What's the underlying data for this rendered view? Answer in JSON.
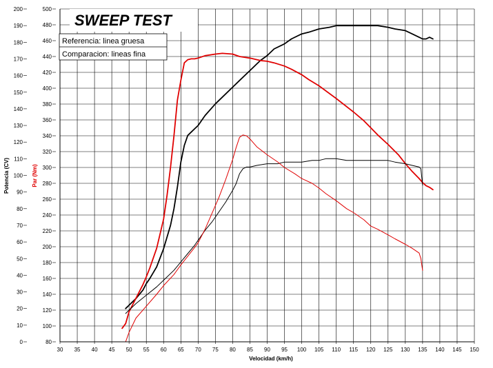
{
  "chart_data": {
    "type": "line",
    "title": "SWEEP TEST",
    "legend": [
      "Referencia: linea gruesa",
      "Comparacion: lineas fina"
    ],
    "legend_placement": "top-left",
    "xlabel": "Velocidad (km/h)",
    "ylabel_left": "Potencia (CV)",
    "ylabel_right": "Par (Nm)",
    "xlim": [
      30,
      150
    ],
    "ylim_left": [
      0,
      200
    ],
    "ylim_right": [
      80,
      500
    ],
    "x_ticks": [
      "30",
      "35",
      "40",
      "45",
      "50",
      "55",
      "60",
      "65",
      "70",
      "75",
      "80",
      "85",
      "90",
      "95",
      "100",
      "105",
      "110",
      "115",
      "120",
      "125",
      "130",
      "135",
      "140",
      "145",
      "150"
    ],
    "y_ticks_left": [
      "0",
      "10",
      "20",
      "30",
      "40",
      "50",
      "60",
      "70",
      "80",
      "90",
      "100",
      "110",
      "120",
      "130",
      "140",
      "150",
      "160",
      "170",
      "180",
      "190",
      "200"
    ],
    "y_ticks_right": [
      "80",
      "100",
      "120",
      "140",
      "160",
      "180",
      "200",
      "220",
      "240",
      "260",
      "280",
      "300",
      "320",
      "340",
      "360",
      "380",
      "400",
      "420",
      "440",
      "460",
      "480",
      "500"
    ],
    "grid": true,
    "colors": {
      "power": "#000000",
      "torque": "#e00000",
      "grid": "#000000"
    },
    "series": [
      {
        "name": "Referencia: linea gruesa",
        "quantity": "Potencia (CV)",
        "axis": "left",
        "color": "#000000",
        "style": "thick",
        "x": [
          49,
          50,
          52,
          54,
          55,
          56,
          58,
          60,
          61,
          62,
          63,
          64,
          65,
          66,
          67,
          68,
          69,
          70,
          72,
          75,
          78,
          80,
          82,
          85,
          88,
          90,
          92,
          95,
          97,
          100,
          102,
          105,
          108,
          110,
          112,
          115,
          118,
          120,
          122,
          125,
          127,
          130,
          132,
          134,
          135,
          136,
          137,
          138
        ],
        "y": [
          20,
          22,
          26,
          31,
          35,
          38,
          45,
          56,
          63,
          70,
          80,
          93,
          108,
          118,
          124,
          126,
          128,
          130,
          136,
          143,
          149,
          153,
          157,
          163,
          169,
          172,
          176,
          179,
          182,
          185,
          186,
          188,
          189,
          190,
          190,
          190,
          190,
          190,
          190,
          189,
          188,
          187,
          185,
          183,
          182,
          182,
          183,
          182
        ]
      },
      {
        "name": "Referencia: linea gruesa",
        "quantity": "Par (Nm)",
        "axis": "right",
        "color": "#e00000",
        "style": "thick",
        "x": [
          48,
          49,
          50,
          52,
          54,
          55,
          56,
          58,
          60,
          61,
          62,
          63,
          64,
          65,
          66,
          67,
          68,
          69,
          70,
          72,
          75,
          77,
          80,
          82,
          85,
          88,
          90,
          92,
          95,
          97,
          100,
          102,
          105,
          110,
          115,
          118,
          120,
          122,
          125,
          128,
          130,
          132,
          134,
          135,
          136,
          137,
          138
        ],
        "y": [
          97,
          103,
          118,
          135,
          152,
          162,
          173,
          198,
          235,
          265,
          300,
          340,
          385,
          410,
          432,
          436,
          437,
          437,
          438,
          441,
          443,
          444,
          443,
          440,
          438,
          435,
          434,
          432,
          428,
          424,
          417,
          411,
          403,
          387,
          370,
          359,
          350,
          341,
          329,
          316,
          305,
          295,
          286,
          281,
          277,
          275,
          272
        ]
      },
      {
        "name": "Comparacion: lineas fina",
        "quantity": "Potencia (CV)",
        "axis": "left",
        "color": "#000000",
        "style": "thin",
        "x": [
          49,
          50,
          52,
          55,
          58,
          60,
          63,
          65,
          67,
          69,
          70,
          72,
          74,
          76,
          78,
          80,
          81,
          82,
          83,
          84,
          85,
          87,
          90,
          93,
          95,
          98,
          100,
          103,
          105,
          107,
          110,
          113,
          115,
          118,
          120,
          122,
          125,
          127,
          130,
          132,
          134,
          134.5,
          135
        ],
        "y": [
          17,
          19,
          23,
          28,
          33,
          37,
          43,
          48,
          53,
          58,
          61,
          67,
          72,
          78,
          84,
          91,
          95,
          101,
          104,
          105,
          105,
          106,
          107,
          107,
          108,
          108,
          108,
          109,
          109,
          110,
          110,
          109,
          109,
          109,
          109,
          109,
          109,
          108,
          107,
          106,
          105,
          104,
          94
        ]
      },
      {
        "name": "Comparacion: lineas fina",
        "quantity": "Par (Nm)",
        "axis": "right",
        "color": "#e00000",
        "style": "thin",
        "x": [
          49,
          50,
          52,
          55,
          58,
          60,
          63,
          65,
          67,
          69,
          70,
          72,
          74,
          76,
          78,
          80,
          81,
          82,
          83,
          84,
          85,
          87,
          90,
          93,
          95,
          98,
          100,
          103,
          105,
          107,
          110,
          113,
          115,
          118,
          120,
          122,
          125,
          127,
          130,
          132,
          134,
          134.5,
          135
        ],
        "y": [
          80,
          92,
          110,
          125,
          140,
          151,
          165,
          177,
          188,
          199,
          205,
          222,
          242,
          262,
          285,
          310,
          325,
          338,
          341,
          340,
          336,
          326,
          316,
          307,
          300,
          292,
          286,
          280,
          274,
          267,
          258,
          248,
          243,
          234,
          226,
          222,
          215,
          210,
          203,
          198,
          192,
          185,
          170
        ]
      }
    ]
  }
}
